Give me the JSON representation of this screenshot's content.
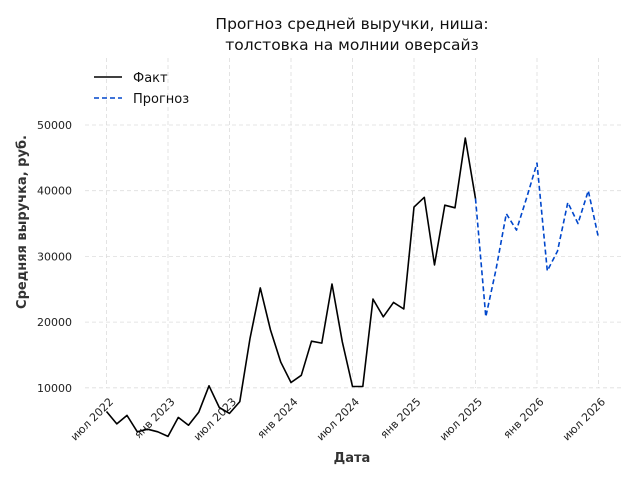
{
  "chart_data": {
    "type": "line",
    "title": [
      "Прогноз средней выручки, ниша:",
      "толстовка на молнии оверсайз"
    ],
    "xlabel": "Дата",
    "ylabel": "Средняя выручка, руб.",
    "ylim": [
      0,
      50000
    ],
    "yticks": [
      10000,
      20000,
      30000,
      40000,
      50000
    ],
    "xticks": [
      {
        "label": "июл 2022",
        "m": 6
      },
      {
        "label": "янв 2023",
        "m": 12
      },
      {
        "label": "июл 2023",
        "m": 18
      },
      {
        "label": "янв 2024",
        "m": 24
      },
      {
        "label": "июл 2024",
        "m": 30
      },
      {
        "label": "янв 2025",
        "m": 36
      },
      {
        "label": "июл 2025",
        "m": 42
      },
      {
        "label": "янв 2026",
        "m": 48
      },
      {
        "label": "июл 2026",
        "m": 54
      }
    ],
    "x_axis_origin": "2022-01",
    "grid": true,
    "legend_position": "top-left",
    "colors": {
      "actual": "#000000",
      "forecast": "#0047cc"
    },
    "series": [
      {
        "name": "Факт",
        "style": "solid",
        "color": "#000000",
        "points": [
          [
            6,
            6400
          ],
          [
            7,
            4500
          ],
          [
            8,
            5800
          ],
          [
            9,
            3300
          ],
          [
            10,
            3700
          ],
          [
            11,
            3300
          ],
          [
            12,
            2600
          ],
          [
            13,
            5500
          ],
          [
            14,
            4300
          ],
          [
            15,
            6300
          ],
          [
            16,
            10300
          ],
          [
            17,
            7000
          ],
          [
            18,
            6100
          ],
          [
            19,
            7900
          ],
          [
            20,
            17500
          ],
          [
            21,
            25200
          ],
          [
            22,
            18800
          ],
          [
            23,
            13900
          ],
          [
            24,
            10800
          ],
          [
            25,
            11900
          ],
          [
            26,
            17100
          ],
          [
            27,
            16800
          ],
          [
            28,
            25800
          ],
          [
            29,
            17000
          ],
          [
            30,
            10200
          ],
          [
            31,
            10200
          ],
          [
            32,
            23500
          ],
          [
            33,
            20800
          ],
          [
            34,
            23000
          ],
          [
            35,
            22000
          ],
          [
            36,
            37500
          ],
          [
            37,
            39000
          ],
          [
            38,
            28700
          ],
          [
            39,
            37800
          ],
          [
            40,
            37400
          ],
          [
            41,
            48000
          ],
          [
            42,
            38800
          ]
        ]
      },
      {
        "name": "Прогноз",
        "style": "dashed",
        "color": "#0047cc",
        "points": [
          [
            42,
            38800
          ],
          [
            43,
            20800
          ],
          [
            44,
            28000
          ],
          [
            45,
            36500
          ],
          [
            46,
            34000
          ],
          [
            47,
            39000
          ],
          [
            48,
            44200
          ],
          [
            49,
            27800
          ],
          [
            50,
            30800
          ],
          [
            51,
            38200
          ],
          [
            52,
            35000
          ],
          [
            53,
            40000
          ],
          [
            54,
            32800
          ]
        ]
      }
    ]
  }
}
